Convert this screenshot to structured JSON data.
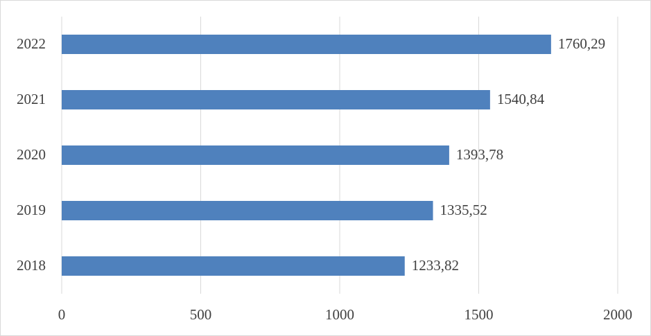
{
  "chart_data": {
    "type": "barh",
    "categories": [
      "2018",
      "2019",
      "2020",
      "2021",
      "2022"
    ],
    "values": [
      1233.82,
      1335.52,
      1393.78,
      1540.84,
      1760.29
    ],
    "value_labels": [
      "1233,82",
      "1335,52",
      "1393,78",
      "1540,84",
      "1760,29"
    ],
    "color": "#4f81bd",
    "xlim": [
      0,
      2000
    ],
    "xticks": [
      0,
      500,
      1000,
      1500,
      2000
    ],
    "grid": true
  }
}
